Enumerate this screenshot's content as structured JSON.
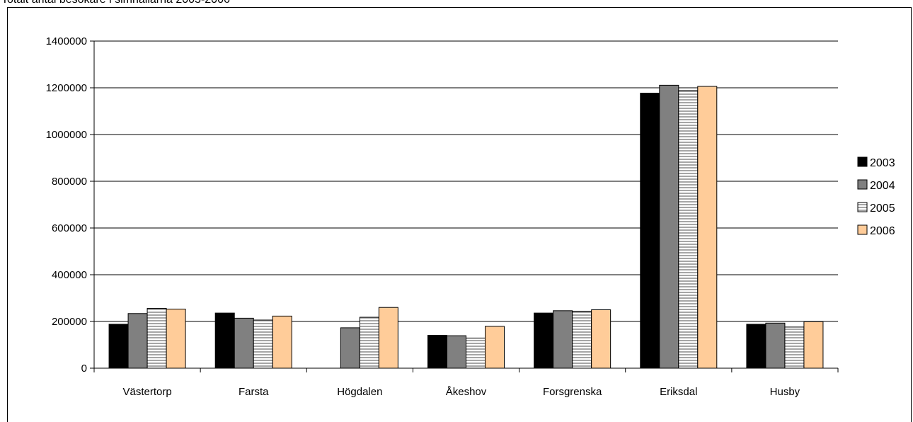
{
  "chart_data": {
    "type": "bar",
    "title": "Totalt antal besökare i simhallarna 2003-2006",
    "xlabel": "",
    "ylabel": "",
    "ylim": [
      0,
      1400000
    ],
    "yticks": [
      0,
      200000,
      400000,
      600000,
      800000,
      1000000,
      1200000,
      1400000
    ],
    "ytick_labels": [
      "0",
      "200000",
      "400000",
      "600000",
      "800000",
      "1000000",
      "1200000",
      "1400000"
    ],
    "grid": "horizontal major gridlines",
    "legend_position": "right",
    "categories": [
      "Västertorp",
      "Farsta",
      "Högdalen",
      "Åkeshov",
      "Forsgrenska",
      "Eriksdal",
      "Husby"
    ],
    "series": [
      {
        "name": "2003",
        "color": "#000000",
        "pattern": "solid",
        "values": [
          188000,
          236000,
          0,
          141000,
          236000,
          1177000,
          188000
        ]
      },
      {
        "name": "2004",
        "color": "#808080",
        "pattern": "solid",
        "values": [
          234000,
          214000,
          173000,
          139000,
          246000,
          1211000,
          193000
        ]
      },
      {
        "name": "2005",
        "color": "#ffffff",
        "pattern": "horizontal-stripes",
        "values": [
          256000,
          206000,
          218000,
          129000,
          244000,
          1188000,
          176000
        ]
      },
      {
        "name": "2006",
        "color": "#ffcc99",
        "pattern": "solid",
        "values": [
          253000,
          223000,
          260000,
          179000,
          250000,
          1206000,
          199000
        ]
      }
    ]
  }
}
